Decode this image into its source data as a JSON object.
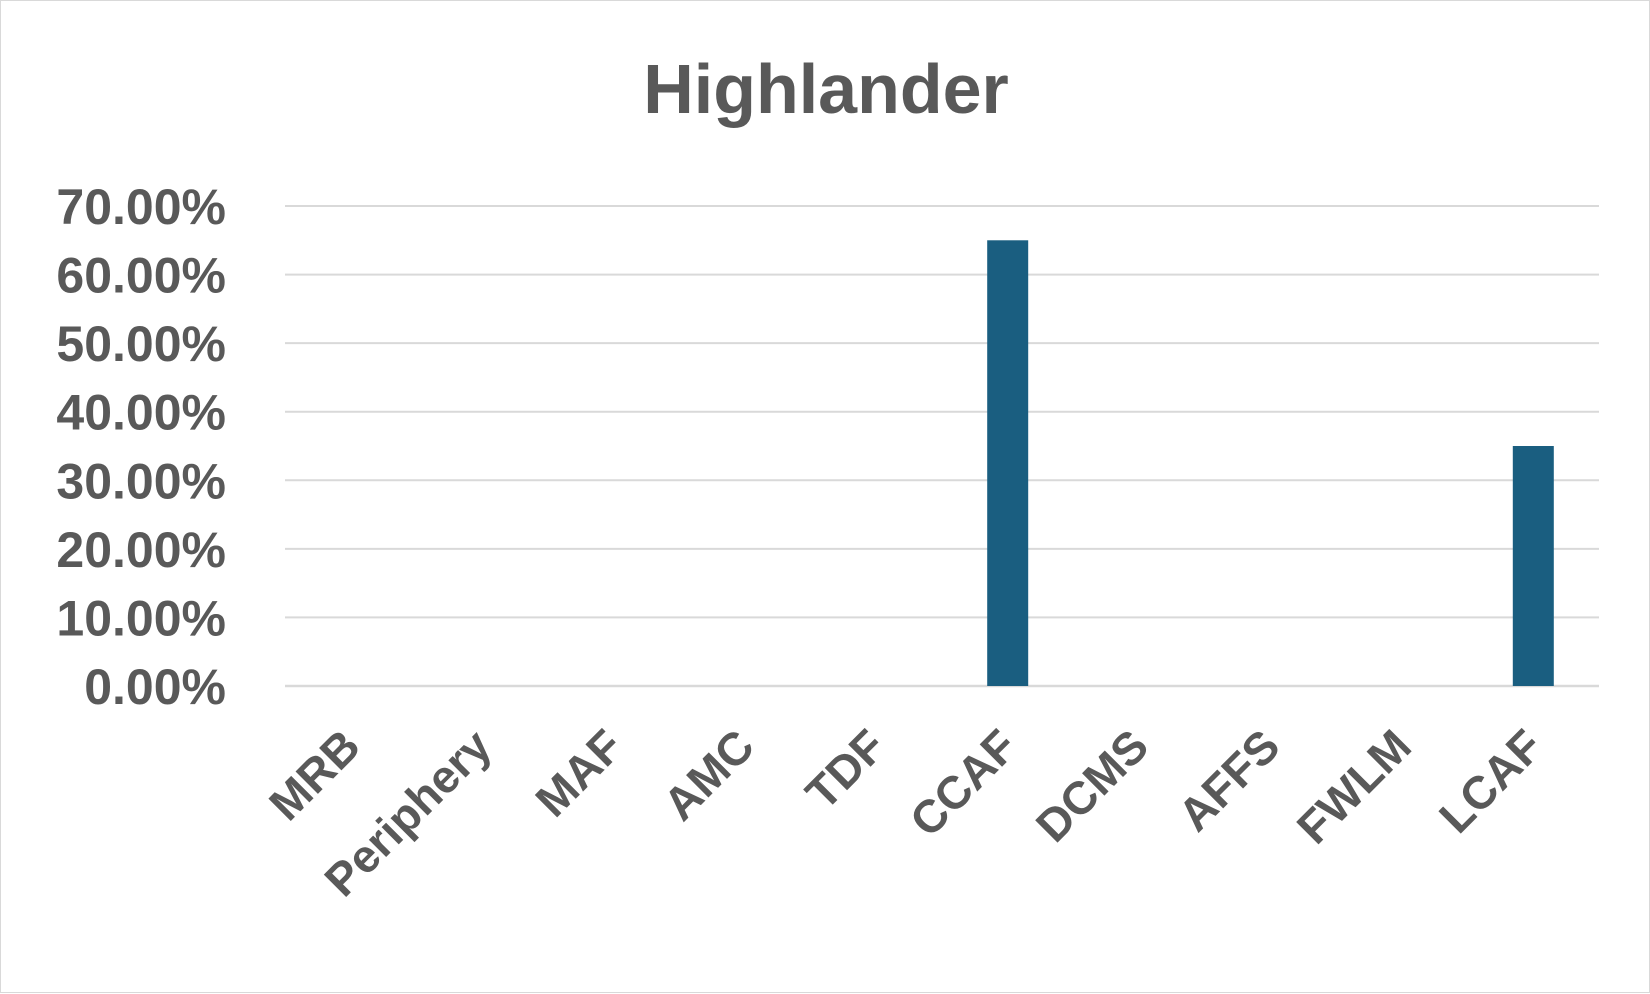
{
  "chart_data": {
    "type": "bar",
    "title": "Highlander",
    "categories": [
      "MRB",
      "Periphery",
      "MAF",
      "AMC",
      "TDF",
      "CCAF",
      "DCMS",
      "AFFS",
      "FWLM",
      "LCAF"
    ],
    "series": [
      {
        "values": [
          0,
          0,
          0,
          0,
          0,
          0.65,
          0,
          0,
          0,
          0.35
        ]
      }
    ],
    "ylim": [
      0,
      0.7
    ],
    "yticks": [
      0,
      0.1,
      0.2,
      0.3,
      0.4,
      0.5,
      0.6,
      0.7
    ],
    "ytick_labels": [
      "0.00%",
      "10.00%",
      "20.00%",
      "30.00%",
      "40.00%",
      "50.00%",
      "60.00%",
      "70.00%"
    ],
    "xlabel": "",
    "ylabel": "",
    "grid": true,
    "legend": "none",
    "colors": {
      "bar": "#1a5e80",
      "grid": "#d9d9d9",
      "text": "#595959"
    }
  }
}
